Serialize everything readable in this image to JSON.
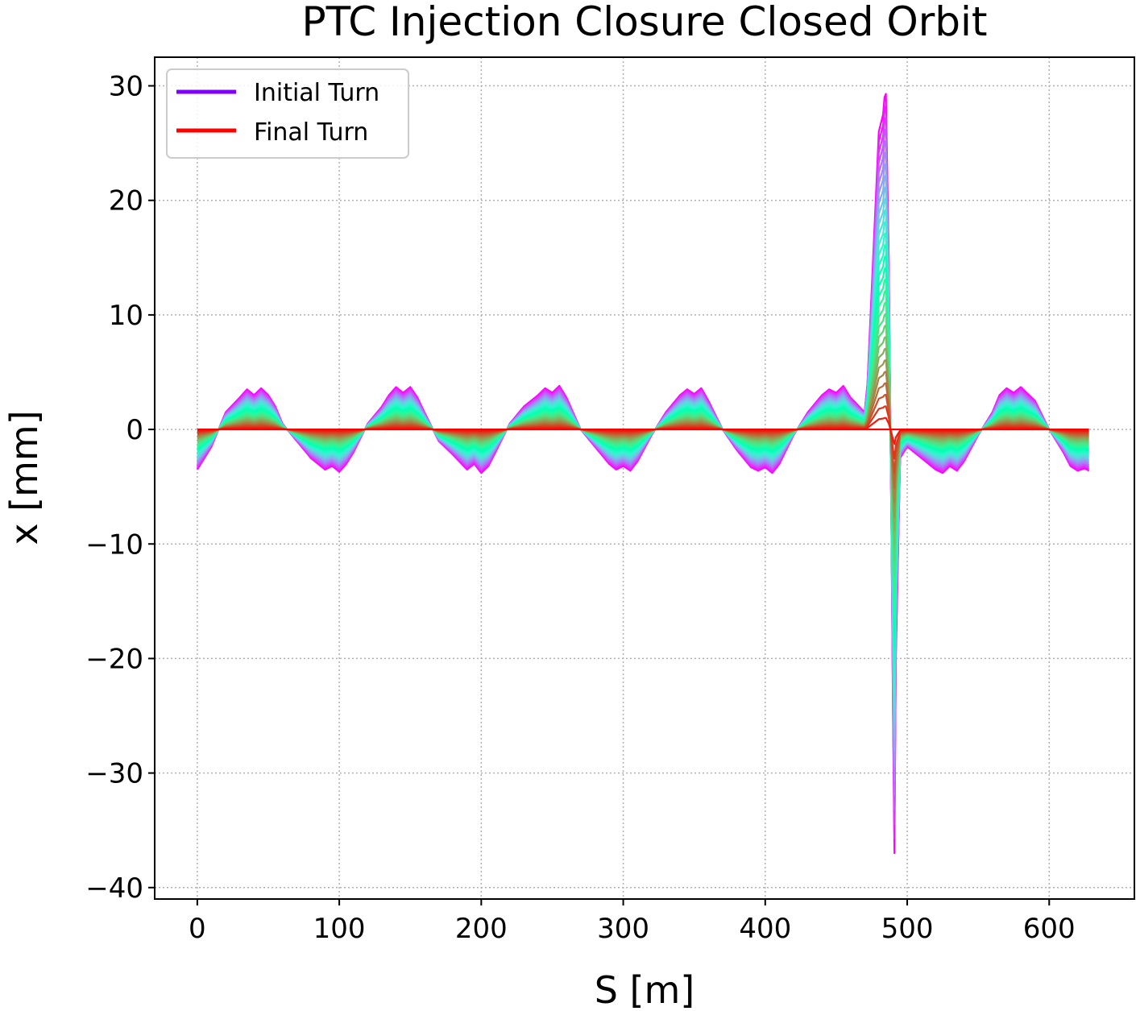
{
  "chart_data": {
    "type": "line",
    "title": "PTC Injection Closure Closed Orbit",
    "xlabel": "S [m]",
    "ylabel": "x [mm]",
    "xlim": [
      -30,
      660
    ],
    "ylim": [
      -41,
      32.5
    ],
    "xticks": [
      0,
      100,
      200,
      300,
      400,
      500,
      600
    ],
    "yticks": [
      -40,
      -30,
      -20,
      -10,
      0,
      10,
      20,
      30
    ],
    "xtick_labels": [
      "0",
      "100",
      "200",
      "300",
      "400",
      "500",
      "600"
    ],
    "ytick_labels": [
      "−40",
      "−30",
      "−20",
      "−10",
      "0",
      "10",
      "20",
      "30"
    ],
    "grid": true,
    "legend": {
      "placement": "upper-left",
      "entries": [
        {
          "label": "Initial Turn",
          "color": "#8000ff"
        },
        {
          "label": "Final Turn",
          "color": "#ff0000"
        }
      ]
    },
    "series_count": 30,
    "colormap": "rainbow",
    "initial_turn_orbit": {
      "s": [
        0,
        10,
        20,
        30,
        35,
        40,
        45,
        50,
        55,
        60,
        70,
        80,
        90,
        95,
        100,
        105,
        110,
        120,
        130,
        135,
        140,
        145,
        150,
        155,
        160,
        170,
        180,
        190,
        195,
        200,
        205,
        210,
        220,
        230,
        240,
        245,
        250,
        255,
        260,
        270,
        280,
        290,
        295,
        300,
        305,
        310,
        320,
        330,
        340,
        345,
        350,
        355,
        360,
        370,
        380,
        390,
        395,
        400,
        405,
        410,
        420,
        430,
        440,
        445,
        450,
        455,
        460,
        470,
        472,
        476,
        480,
        483,
        484,
        485,
        487,
        489,
        490,
        491,
        492,
        495,
        500,
        510,
        520,
        525,
        530,
        535,
        540,
        550,
        560,
        565,
        570,
        575,
        580,
        590,
        600,
        610,
        615,
        620,
        625,
        628
      ],
      "x": [
        -3.5,
        -1.5,
        1.5,
        2.8,
        3.5,
        3.0,
        3.6,
        3.0,
        2.0,
        0.5,
        -1.0,
        -2.5,
        -3.5,
        -3.2,
        -3.7,
        -3.0,
        -2.0,
        0.5,
        2.0,
        3.0,
        3.7,
        3.2,
        3.7,
        2.8,
        1.5,
        -1.0,
        -2.2,
        -3.5,
        -3.0,
        -3.8,
        -3.2,
        -2.0,
        0.5,
        2.0,
        3.0,
        3.6,
        3.2,
        3.8,
        2.8,
        0.0,
        -1.5,
        -3.0,
        -3.5,
        -3.2,
        -3.6,
        -2.8,
        -0.5,
        1.5,
        3.0,
        3.5,
        3.1,
        3.6,
        2.5,
        0.0,
        -1.8,
        -3.3,
        -3.6,
        -3.3,
        -3.8,
        -3.0,
        -0.5,
        1.5,
        3.0,
        3.5,
        3.2,
        3.8,
        2.8,
        1.5,
        4.0,
        15.0,
        26.0,
        27.5,
        29.0,
        29.3,
        15.0,
        -10.0,
        -25.0,
        -37.0,
        -20.0,
        -2.5,
        -1.5,
        -2.5,
        -3.5,
        -3.8,
        -3.2,
        -3.6,
        -2.8,
        -0.5,
        1.5,
        3.0,
        3.6,
        3.2,
        3.7,
        2.5,
        0.0,
        -2.0,
        -3.2,
        -3.6,
        -3.4,
        -3.6
      ]
    }
  }
}
